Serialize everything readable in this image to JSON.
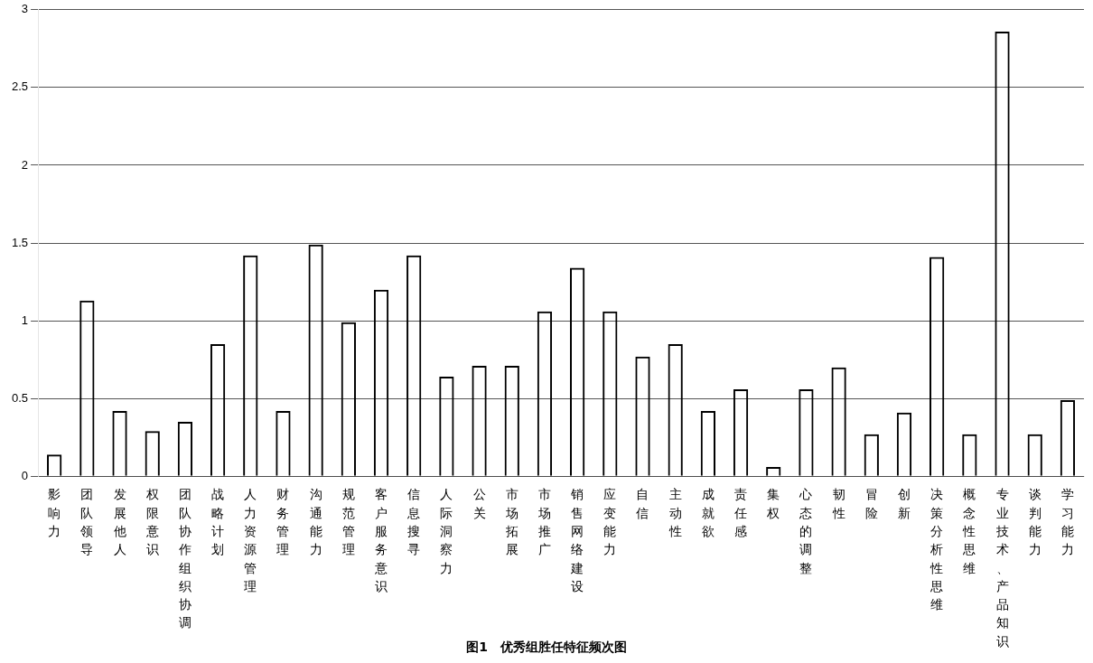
{
  "chart_data": {
    "type": "bar",
    "title": "图1　优秀组胜任特征频次图",
    "categories": [
      "影响力",
      "团队领导",
      "发展他人",
      "权限意识",
      "团队协作组织协调",
      "战略计划",
      "人力资源管理",
      "财务管理",
      "沟通能力",
      "规范管理",
      "客户服务意识",
      "信息搜寻",
      "人际洞察力",
      "公关",
      "市场拓展",
      "市场推广",
      "销售网络建设",
      "应变能力",
      "自信",
      "主动性",
      "成就欲",
      "责任感",
      "集权",
      "心态的调整",
      "韧性",
      "冒险",
      "创新",
      "决策分析性思维",
      "概念性思维",
      "专业技术、产品知识",
      "谈判能力",
      "学习能力"
    ],
    "values": [
      0.14,
      1.13,
      0.42,
      0.29,
      0.35,
      0.85,
      1.42,
      0.42,
      1.49,
      0.99,
      1.2,
      1.42,
      0.64,
      0.71,
      0.71,
      1.06,
      1.34,
      1.06,
      0.77,
      0.85,
      0.42,
      0.56,
      0.06,
      0.56,
      0.7,
      0.27,
      0.41,
      1.41,
      0.27,
      2.86,
      0.27,
      0.49
    ],
    "color": "#000000",
    "ylim": [
      0,
      3
    ],
    "yticks": [
      0,
      0.5,
      1,
      1.5,
      2,
      2.5,
      3
    ],
    "grid": "y"
  }
}
